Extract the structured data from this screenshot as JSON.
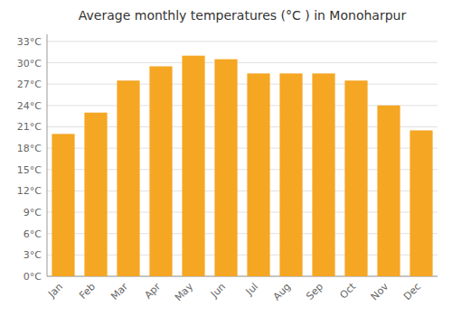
{
  "chart_data": {
    "type": "bar",
    "title": "Average monthly temperatures (°C ) in Monoharpur",
    "categories": [
      "Jan",
      "Feb",
      "Mar",
      "Apr",
      "May",
      "Jun",
      "Jul",
      "Aug",
      "Sep",
      "Oct",
      "Nov",
      "Dec"
    ],
    "values": [
      20.0,
      23.0,
      27.5,
      29.5,
      31.0,
      30.5,
      28.5,
      28.5,
      28.5,
      27.5,
      24.0,
      20.5
    ],
    "color": "#F5A623",
    "ylim": [
      0,
      34
    ],
    "yticks": [
      {
        "value": 0,
        "label": "0°C"
      },
      {
        "value": 3,
        "label": "3°C"
      },
      {
        "value": 6,
        "label": "6°C"
      },
      {
        "value": 9,
        "label": "9°C"
      },
      {
        "value": 12,
        "label": "12°C"
      },
      {
        "value": 15,
        "label": "15°C"
      },
      {
        "value": 18,
        "label": "18°C"
      },
      {
        "value": 21,
        "label": "21°C"
      },
      {
        "value": 24,
        "label": "24°C"
      },
      {
        "value": 27,
        "label": "27°C"
      },
      {
        "value": 30,
        "label": "30°C"
      },
      {
        "value": 33,
        "label": "33°C"
      }
    ],
    "grid": true
  }
}
